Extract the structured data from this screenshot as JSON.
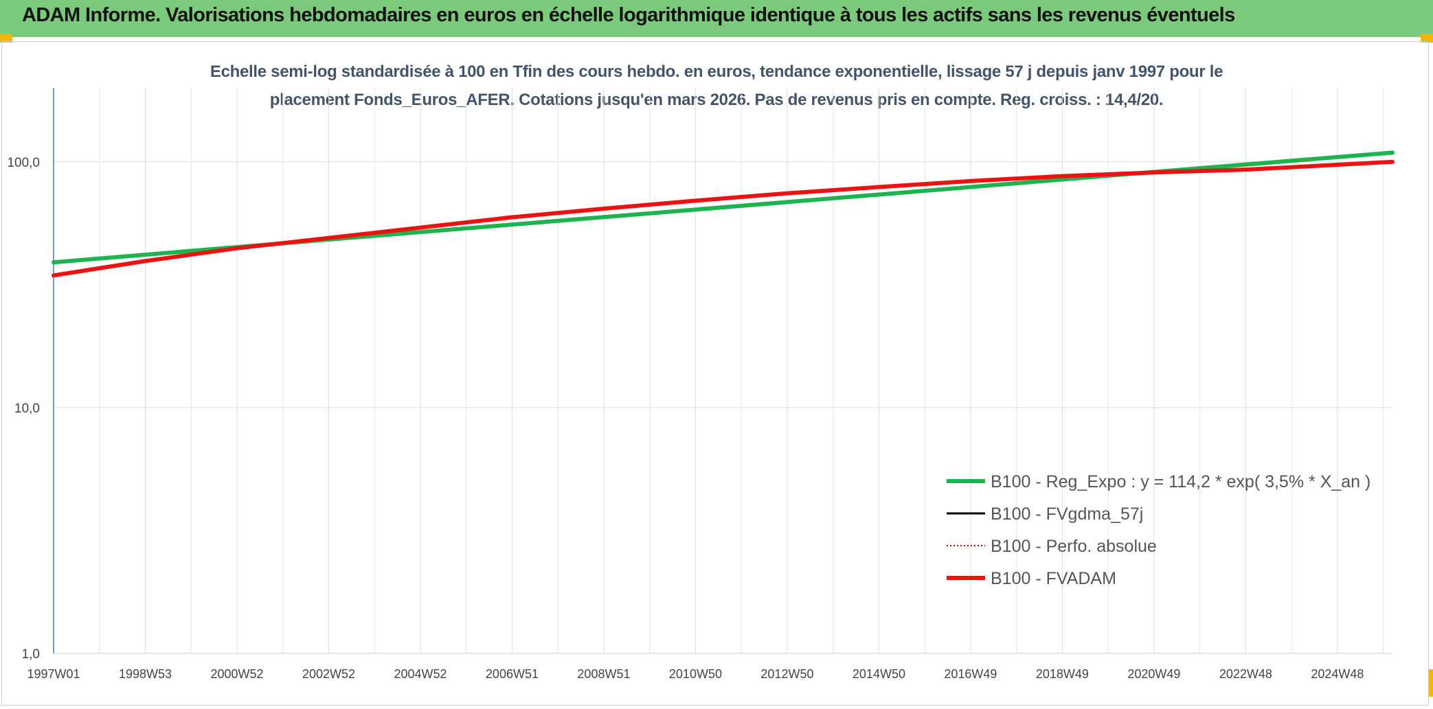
{
  "header": {
    "title": "ADAM Informe. Valorisations hebdomadaires en euros en échelle logarithmique identique à tous les actifs sans les revenus éventuels"
  },
  "chart_data": {
    "type": "line",
    "title_line1": "Echelle semi-log standardisée à 100 en Tfin des cours hebdo. en euros, tendance exponentielle, lissage 57 j depuis janv 1997 pour le",
    "title_line2": "placement Fonds_Euros_AFER. Cotations jusqu'en mars 2026. Pas de revenus pris en compte. Reg. croiss. : 14,4/20.",
    "yscale": "log",
    "ylim": [
      1,
      200
    ],
    "y_ticks": [
      {
        "value": 1,
        "label": "1,0"
      },
      {
        "value": 10,
        "label": "10,0"
      },
      {
        "value": 100,
        "label": "100,0"
      }
    ],
    "x_range_years": [
      1997.0,
      2026.2
    ],
    "x_ticks": [
      {
        "year": 1997.0,
        "label": "1997W01"
      },
      {
        "year": 1999.0,
        "label": "1998W53"
      },
      {
        "year": 2001.0,
        "label": "2000W52"
      },
      {
        "year": 2003.0,
        "label": "2002W52"
      },
      {
        "year": 2005.0,
        "label": "2004W52"
      },
      {
        "year": 2007.0,
        "label": "2006W51"
      },
      {
        "year": 2009.0,
        "label": "2008W51"
      },
      {
        "year": 2011.0,
        "label": "2010W50"
      },
      {
        "year": 2013.0,
        "label": "2012W50"
      },
      {
        "year": 2015.0,
        "label": "2014W50"
      },
      {
        "year": 2017.0,
        "label": "2016W49"
      },
      {
        "year": 2019.0,
        "label": "2018W49"
      },
      {
        "year": 2021.0,
        "label": "2020W49"
      },
      {
        "year": 2023.0,
        "label": "2022W48"
      },
      {
        "year": 2025.0,
        "label": "2024W48"
      }
    ],
    "legend": "right",
    "series": [
      {
        "name": "B100 - Reg_Expo : y = 114,2 * exp( 3,5% *  X_an )",
        "color": "#1db34f",
        "style": "solid-thick",
        "x": [
          1997.0,
          2001.0,
          2005.0,
          2009.0,
          2013.0,
          2017.0,
          2021.0,
          2026.2
        ],
        "y": [
          39.0,
          45.0,
          51.8,
          59.6,
          68.6,
          79.0,
          91.0,
          109.0
        ]
      },
      {
        "name": "B100 - FVgdma_57j",
        "color": "#000000",
        "style": "solid",
        "x": [],
        "y": []
      },
      {
        "name": "B100 - Perfo. absolue",
        "color": "#c00000",
        "style": "dotted",
        "x": [],
        "y": []
      },
      {
        "name": "B100 - FVADAM",
        "color": "#ee1111",
        "style": "solid-thick",
        "x": [
          1997.0,
          1999.0,
          2001.0,
          2003.0,
          2005.0,
          2007.0,
          2009.0,
          2011.0,
          2013.0,
          2015.0,
          2017.0,
          2019.0,
          2021.0,
          2023.0,
          2026.2
        ],
        "y": [
          34.5,
          39.5,
          44.5,
          49.0,
          54.0,
          59.5,
          64.5,
          69.5,
          74.5,
          79.0,
          83.5,
          87.5,
          90.5,
          93.0,
          100.0
        ]
      }
    ]
  }
}
